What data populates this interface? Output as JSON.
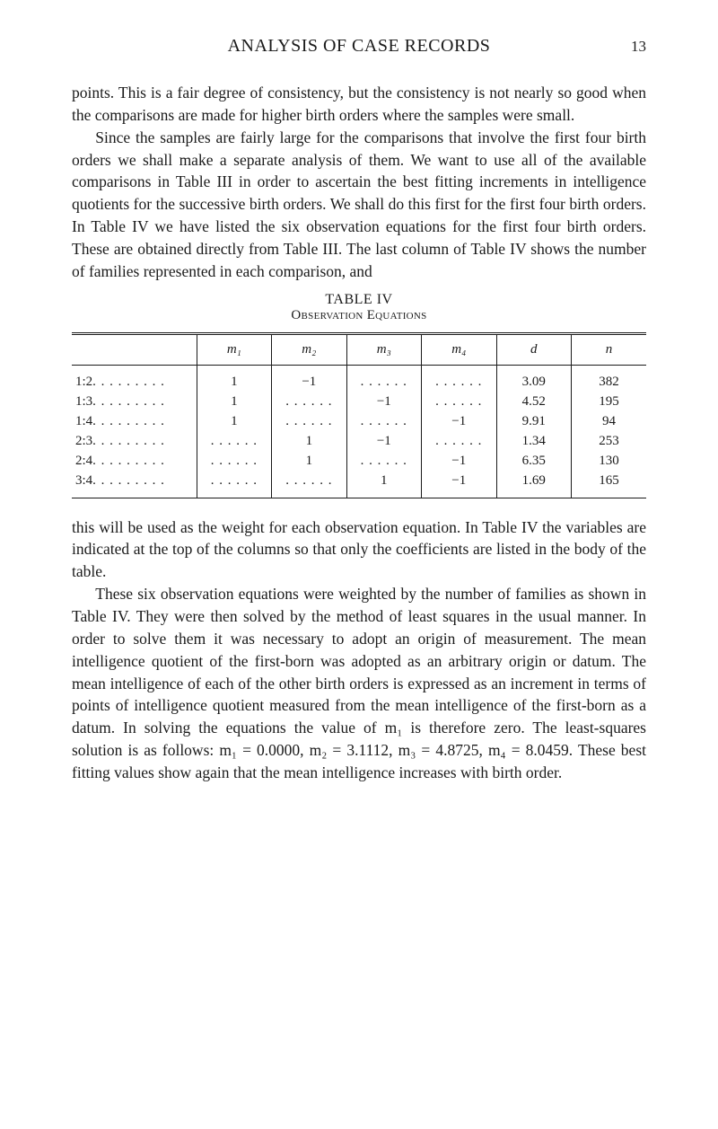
{
  "header": {
    "title": "ANALYSIS OF CASE RECORDS",
    "page": "13"
  },
  "para1": "points. This is a fair degree of consistency, but the consistency is not nearly so good when the comparisons are made for higher birth orders where the samples were small.",
  "para2": "Since the samples are fairly large for the comparisons that involve the first four birth orders we shall make a separate analysis of them. We want to use all of the available comparisons in Table III in order to ascertain the best fitting increments in intelligence quotients for the successive birth orders. We shall do this first for the first four birth orders. In Table IV we have listed the six observation equations for the first four birth orders. These are obtained directly from Table III. The last column of Table IV shows the number of families represented in each comparison, and",
  "table": {
    "label": "TABLE IV",
    "subtitle": "Observation Equations",
    "columns": [
      "",
      "m₁",
      "m₂",
      "m₃",
      "m₄",
      "d",
      "n"
    ],
    "rows": [
      {
        "label": "1:2",
        "m1": "1",
        "m2": "−1",
        "m3": "",
        "m4": "",
        "d": "3.09",
        "n": "382"
      },
      {
        "label": "1:3",
        "m1": "1",
        "m2": "",
        "m3": "−1",
        "m4": "",
        "d": "4.52",
        "n": "195"
      },
      {
        "label": "1:4",
        "m1": "1",
        "m2": "",
        "m3": "",
        "m4": "−1",
        "d": "9.91",
        "n": "94"
      },
      {
        "label": "2:3",
        "m1": "",
        "m2": "1",
        "m3": "−1",
        "m4": "",
        "d": "1.34",
        "n": "253"
      },
      {
        "label": "2:4",
        "m1": "",
        "m2": "1",
        "m3": "",
        "m4": "−1",
        "d": "6.35",
        "n": "130"
      },
      {
        "label": "3:4",
        "m1": "",
        "m2": "",
        "m3": "1",
        "m4": "−1",
        "d": "1.69",
        "n": "165"
      }
    ]
  },
  "para3": "this will be used as the weight for each observation equation. In Table IV the variables are indicated at the top of the columns so that only the coefficients are listed in the body of the table.",
  "para4": "These six observation equations were weighted by the number of families as shown in Table IV. They were then solved by the method of least squares in the usual manner. In order to solve them it was necessary to adopt an origin of measurement. The mean intelligence quotient of the first-born was adopted as an arbitrary origin or datum. The mean intelligence of each of the other birth orders is expressed as an increment in terms of points of intelligence quotient measured from the mean intelligence of the first-born as a datum. In solving the equations the value of m₁ is therefore zero. The least-squares solution is as follows: m₁ = 0.0000, m₂ = 3.1112, m₃ = 4.8725, m₄ = 8.0459. These best fitting values show again that the mean intelligence increases with birth order."
}
